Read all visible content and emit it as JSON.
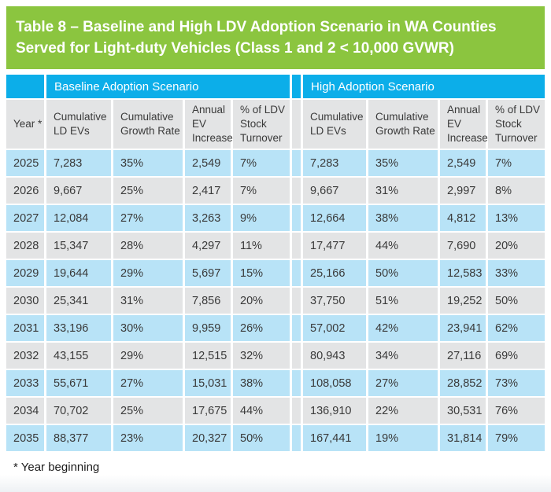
{
  "title_lines": [
    "Table 8 – Baseline and High LDV Adoption Scenario in WA Counties",
    "Served for Light-duty Vehicles (Class 1 and 2 < 10,000 GVWR)"
  ],
  "footnote": "* Year beginning",
  "colors": {
    "green_header": "#8bc53f",
    "cyan_header": "#0caee9",
    "row_blue": "#b8e3f7",
    "row_gray": "#e3e4e5",
    "text_dark": "#3a3a3a"
  },
  "chart_data": {
    "type": "table",
    "title": "Table 8 – Baseline and High LDV Adoption Scenario in WA Counties Served for Light-duty Vehicles (Class 1 and 2 < 10,000 GVWR)",
    "group_headers": [
      "Baseline Adoption Scenario",
      "High Adoption Scenario"
    ],
    "column_headers": {
      "year": "Year *",
      "cumulative_ld_evs": "Cumulative LD EVs",
      "cumulative_growth_rate": "Cumulative Growth Rate",
      "annual_ev_increase": "Annual EV Increase",
      "ldv_stock_turnover": "% of LDV Stock Turnover"
    },
    "rows": [
      {
        "year": "2025",
        "baseline": [
          "7,283",
          "35%",
          "2,549",
          "7%"
        ],
        "high": [
          "7,283",
          "35%",
          "2,549",
          "7%"
        ]
      },
      {
        "year": "2026",
        "baseline": [
          "9,667",
          "25%",
          "2,417",
          "7%"
        ],
        "high": [
          "9,667",
          "31%",
          "2,997",
          "8%"
        ]
      },
      {
        "year": "2027",
        "baseline": [
          "12,084",
          "27%",
          "3,263",
          "9%"
        ],
        "high": [
          "12,664",
          "38%",
          "4,812",
          "13%"
        ]
      },
      {
        "year": "2028",
        "baseline": [
          "15,347",
          "28%",
          "4,297",
          "11%"
        ],
        "high": [
          "17,477",
          "44%",
          "7,690",
          "20%"
        ]
      },
      {
        "year": "2029",
        "baseline": [
          "19,644",
          "29%",
          "5,697",
          "15%"
        ],
        "high": [
          "25,166",
          "50%",
          "12,583",
          "33%"
        ]
      },
      {
        "year": "2030",
        "baseline": [
          "25,341",
          "31%",
          "7,856",
          "20%"
        ],
        "high": [
          "37,750",
          "51%",
          "19,252",
          "50%"
        ]
      },
      {
        "year": "2031",
        "baseline": [
          "33,196",
          "30%",
          "9,959",
          "26%"
        ],
        "high": [
          "57,002",
          "42%",
          "23,941",
          "62%"
        ]
      },
      {
        "year": "2032",
        "baseline": [
          "43,155",
          "29%",
          "12,515",
          "32%"
        ],
        "high": [
          "80,943",
          "34%",
          "27,116",
          "69%"
        ]
      },
      {
        "year": "2033",
        "baseline": [
          "55,671",
          "27%",
          "15,031",
          "38%"
        ],
        "high": [
          "108,058",
          "27%",
          "28,852",
          "73%"
        ]
      },
      {
        "year": "2034",
        "baseline": [
          "70,702",
          "25%",
          "17,675",
          "44%"
        ],
        "high": [
          "136,910",
          "22%",
          "30,531",
          "76%"
        ]
      },
      {
        "year": "2035",
        "baseline": [
          "88,377",
          "23%",
          "20,327",
          "50%"
        ],
        "high": [
          "167,441",
          "19%",
          "31,814",
          "79%"
        ]
      }
    ]
  }
}
